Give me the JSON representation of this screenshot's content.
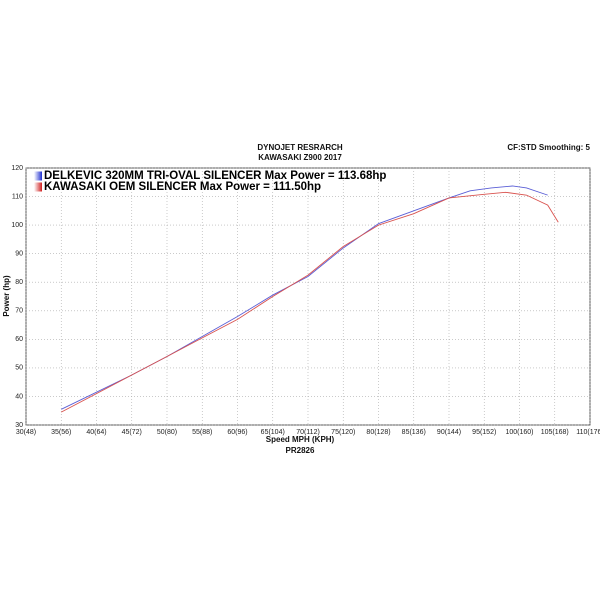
{
  "chart_data": {
    "type": "line",
    "title": "DYNOJET RESRARCH",
    "subtitle": "KAWASAKI Z900 2017",
    "note": "CF:STD Smoothing: 5",
    "x_label": "Speed MPH (KPH)",
    "y_label": "Power (hp)",
    "footer": "PR2826",
    "grid": true,
    "xlim": [
      30,
      110
    ],
    "ylim": [
      30,
      120
    ],
    "xticks": [
      {
        "value": 30,
        "label": "30(48)"
      },
      {
        "value": 35,
        "label": "35(56)"
      },
      {
        "value": 40,
        "label": "40(64)"
      },
      {
        "value": 45,
        "label": "45(72)"
      },
      {
        "value": 50,
        "label": "50(80)"
      },
      {
        "value": 55,
        "label": "55(88)"
      },
      {
        "value": 60,
        "label": "60(96)"
      },
      {
        "value": 65,
        "label": "65(104)"
      },
      {
        "value": 70,
        "label": "70(112)"
      },
      {
        "value": 75,
        "label": "75(120)"
      },
      {
        "value": 80,
        "label": "80(128)"
      },
      {
        "value": 85,
        "label": "85(136)"
      },
      {
        "value": 90,
        "label": "90(144)"
      },
      {
        "value": 95,
        "label": "95(152)"
      },
      {
        "value": 100,
        "label": "100(160)"
      },
      {
        "value": 105,
        "label": "105(168)"
      },
      {
        "value": 110,
        "label": "110(176)"
      }
    ],
    "yticks": [
      30,
      40,
      50,
      60,
      70,
      80,
      90,
      100,
      110,
      120
    ],
    "series": [
      {
        "name": "DELKEVIC 320MM TRI-OVAL SILENCER  Max Power = 113.68hp",
        "color": "#5b5fd6",
        "x": [
          35,
          40,
          45,
          50,
          55,
          60,
          65,
          70,
          75,
          80,
          85,
          90,
          93,
          96,
          99,
          101,
          104
        ],
        "values": [
          35.5,
          41.5,
          47.5,
          54,
          61,
          68,
          75.5,
          82,
          92,
          100.5,
          105,
          109.5,
          112,
          113,
          113.7,
          113,
          110.5
        ]
      },
      {
        "name": "KAWASAKI OEM SILENCER Max Power = 111.50hp",
        "color": "#d9534f",
        "x": [
          35,
          40,
          45,
          50,
          55,
          60,
          65,
          70,
          75,
          80,
          85,
          90,
          95,
          98,
          101,
          104,
          105.5
        ],
        "values": [
          34.5,
          41,
          47.5,
          54,
          60.5,
          67,
          75,
          82.5,
          92.5,
          100,
          104,
          109.5,
          110.8,
          111.5,
          110.5,
          107,
          101
        ]
      }
    ]
  }
}
